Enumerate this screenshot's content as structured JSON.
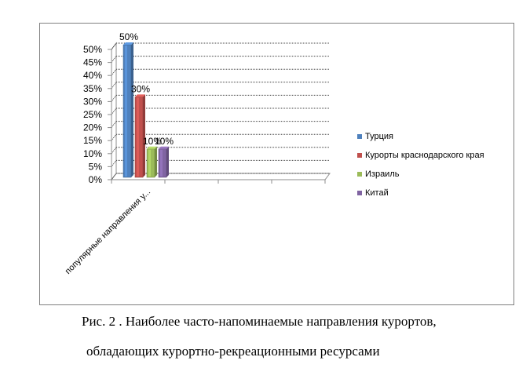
{
  "caption": {
    "line1": "Рис. 2 . Наиболее часто-напоминаемые направления курортов,",
    "line2": "обладающих курортно-рекреационными ресурсами"
  },
  "chart_data": {
    "type": "bar",
    "style": "3d-clustered-column",
    "categories": [
      "популярные направления у..."
    ],
    "series": [
      {
        "name": "Турция",
        "values": [
          50
        ],
        "color": "#4f81bd",
        "label": "50%"
      },
      {
        "name": "Курорты краснодарского края",
        "values": [
          30
        ],
        "color": "#c0504d",
        "label": "30%"
      },
      {
        "name": "Израиль",
        "values": [
          10
        ],
        "color": "#9bbb59",
        "label": "10%"
      },
      {
        "name": "Китай",
        "values": [
          10
        ],
        "color": "#8064a2",
        "label": "10%"
      }
    ],
    "yticks": [
      "0%",
      "5%",
      "10%",
      "15%",
      "20%",
      "25%",
      "30%",
      "35%",
      "40%",
      "45%",
      "50%"
    ],
    "ylim": [
      0,
      50
    ],
    "grid": true,
    "legend_position": "right"
  }
}
